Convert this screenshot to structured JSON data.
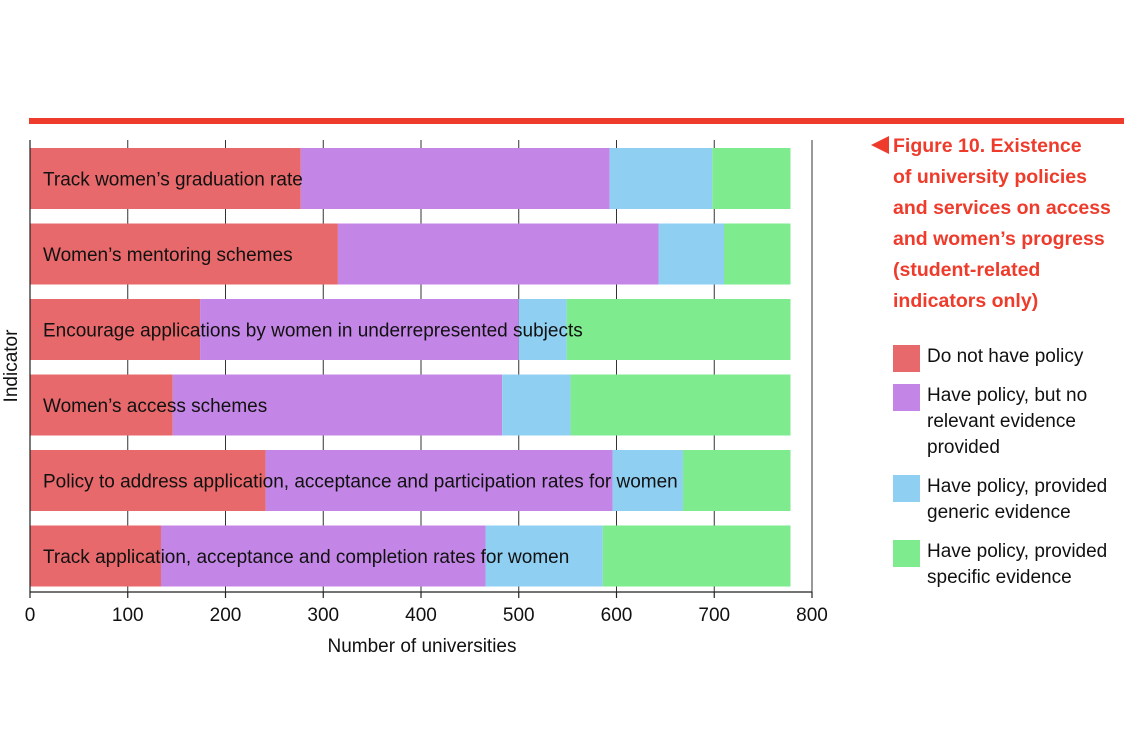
{
  "caption": {
    "lines": [
      "Figure 10. Existence",
      "of university policies",
      "and services on access",
      "and women’s progress",
      "(student-related",
      "indicators only)"
    ]
  },
  "colors": {
    "rule": "#ee3b2b",
    "caption": "#ee3b2b",
    "series": [
      "#e8696b",
      "#c386e6",
      "#8fd0f2",
      "#7deb8e"
    ]
  },
  "legend": {
    "items": [
      "Do not have policy",
      "Have policy, but no relevant evidence provided",
      "Have policy, provided generic evidence",
      "Have policy, provided specific evidence"
    ]
  },
  "chart_data": {
    "type": "bar",
    "orientation": "horizontal",
    "stacked": true,
    "xlabel": "Number of universities",
    "ylabel": "Indicator",
    "xlim": [
      0,
      800
    ],
    "xticks": [
      0,
      100,
      200,
      300,
      400,
      500,
      600,
      700,
      800
    ],
    "grid": "vertical",
    "legend_placement": "right",
    "categories": [
      "Track women’s graduation rate",
      "Women’s mentoring schemes",
      "Encourage applications by women in underrepresented subjects",
      "Women’s access schemes",
      "Policy to address application, acceptance and participation rates for women",
      "Track application, acceptance and completion rates for women"
    ],
    "series": [
      {
        "name": "Do not have policy",
        "values": [
          277,
          315,
          174,
          146,
          241,
          134
        ]
      },
      {
        "name": "Have policy, but no relevant evidence provided",
        "values": [
          316,
          328,
          326,
          337,
          355,
          332
        ]
      },
      {
        "name": "Have policy, provided generic evidence",
        "values": [
          105,
          67,
          49,
          70,
          72,
          120
        ]
      },
      {
        "name": "Have policy, provided specific evidence",
        "values": [
          80,
          68,
          229,
          225,
          110,
          192
        ]
      }
    ]
  }
}
